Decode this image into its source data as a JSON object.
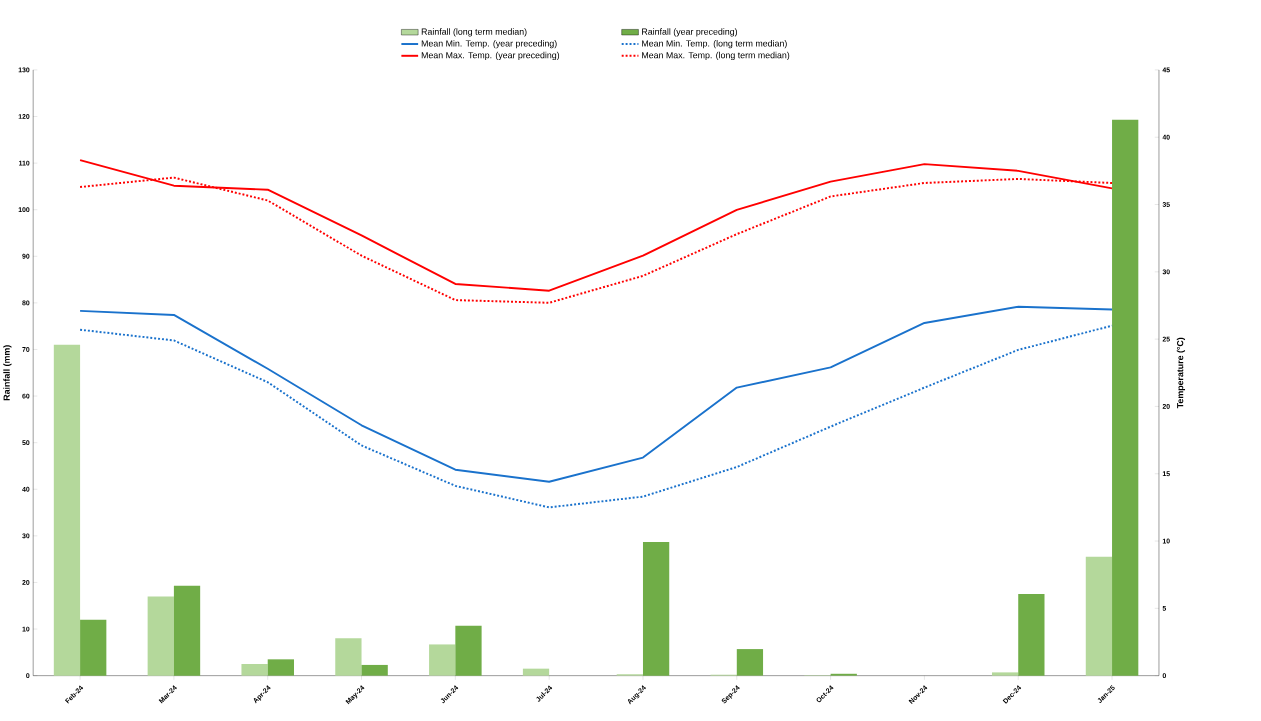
{
  "chart_data": {
    "type": "bar",
    "ylabel": "Rainfall (mm)",
    "y2label": "Temperature (°C)",
    "categories": [
      "Feb-24",
      "Mar-24",
      "Apr-24",
      "May-24",
      "Jun-24",
      "Jul-24",
      "Aug-24",
      "Sep-24",
      "Oct-24",
      "Nov-24",
      "Dec-24",
      "Jan-25"
    ],
    "ylim": [
      0,
      130
    ],
    "yticks": [
      0,
      10,
      20,
      30,
      40,
      50,
      60,
      70,
      80,
      90,
      100,
      110,
      120,
      130
    ],
    "y2lim": [
      0,
      45
    ],
    "y2ticks": [
      0,
      5,
      10,
      15,
      20,
      25,
      30,
      35,
      40,
      45
    ],
    "legend": "top",
    "marker": "none",
    "grid": false,
    "series": [
      {
        "name": "Rainfall (long term median)",
        "color": "#b4d89b",
        "values": [
          71,
          17,
          2.5,
          8,
          6.7,
          1.5,
          0.3,
          0.2,
          0.1,
          0,
          0.7,
          25.5
        ]
      },
      {
        "name": "Rainfall (year preceding)",
        "color": "#70ad47",
        "values": [
          12,
          19.3,
          3.5,
          2.3,
          10.7,
          0,
          28.7,
          5.7,
          0.4,
          0,
          17.5,
          119.3
        ]
      },
      {
        "name": "Mean Min. Temp. (year preceding)",
        "type": "line",
        "axis": "y2",
        "color": "#1a72cc",
        "line_style": "solid",
        "values": [
          27.1,
          26.8,
          22.8,
          18.6,
          15.3,
          14.4,
          16.2,
          21.4,
          22.9,
          26.2,
          27.4,
          27.2
        ]
      },
      {
        "name": "Mean Min. Temp. (long term median)",
        "type": "line",
        "axis": "y2",
        "color": "#1a72cc",
        "line_style": "dotted",
        "values": [
          25.7,
          24.9,
          21.8,
          17.1,
          14.1,
          12.5,
          13.3,
          15.5,
          18.5,
          21.4,
          24.2,
          26.0
        ]
      },
      {
        "name": "Mean Max. Temp. (year preceding)",
        "type": "line",
        "axis": "y2",
        "color": "#ff0000",
        "line_style": "solid",
        "values": [
          38.3,
          36.4,
          36.1,
          32.7,
          29.1,
          28.6,
          31.2,
          34.6,
          36.7,
          38.0,
          37.5,
          36.2
        ]
      },
      {
        "name": "Mean Max. Temp. (long term median)",
        "type": "line",
        "axis": "y2",
        "color": "#ff0000",
        "line_style": "dotted",
        "values": [
          36.3,
          37.0,
          35.3,
          31.2,
          27.9,
          27.7,
          29.7,
          32.8,
          35.6,
          36.6,
          36.9,
          36.6
        ]
      }
    ]
  }
}
